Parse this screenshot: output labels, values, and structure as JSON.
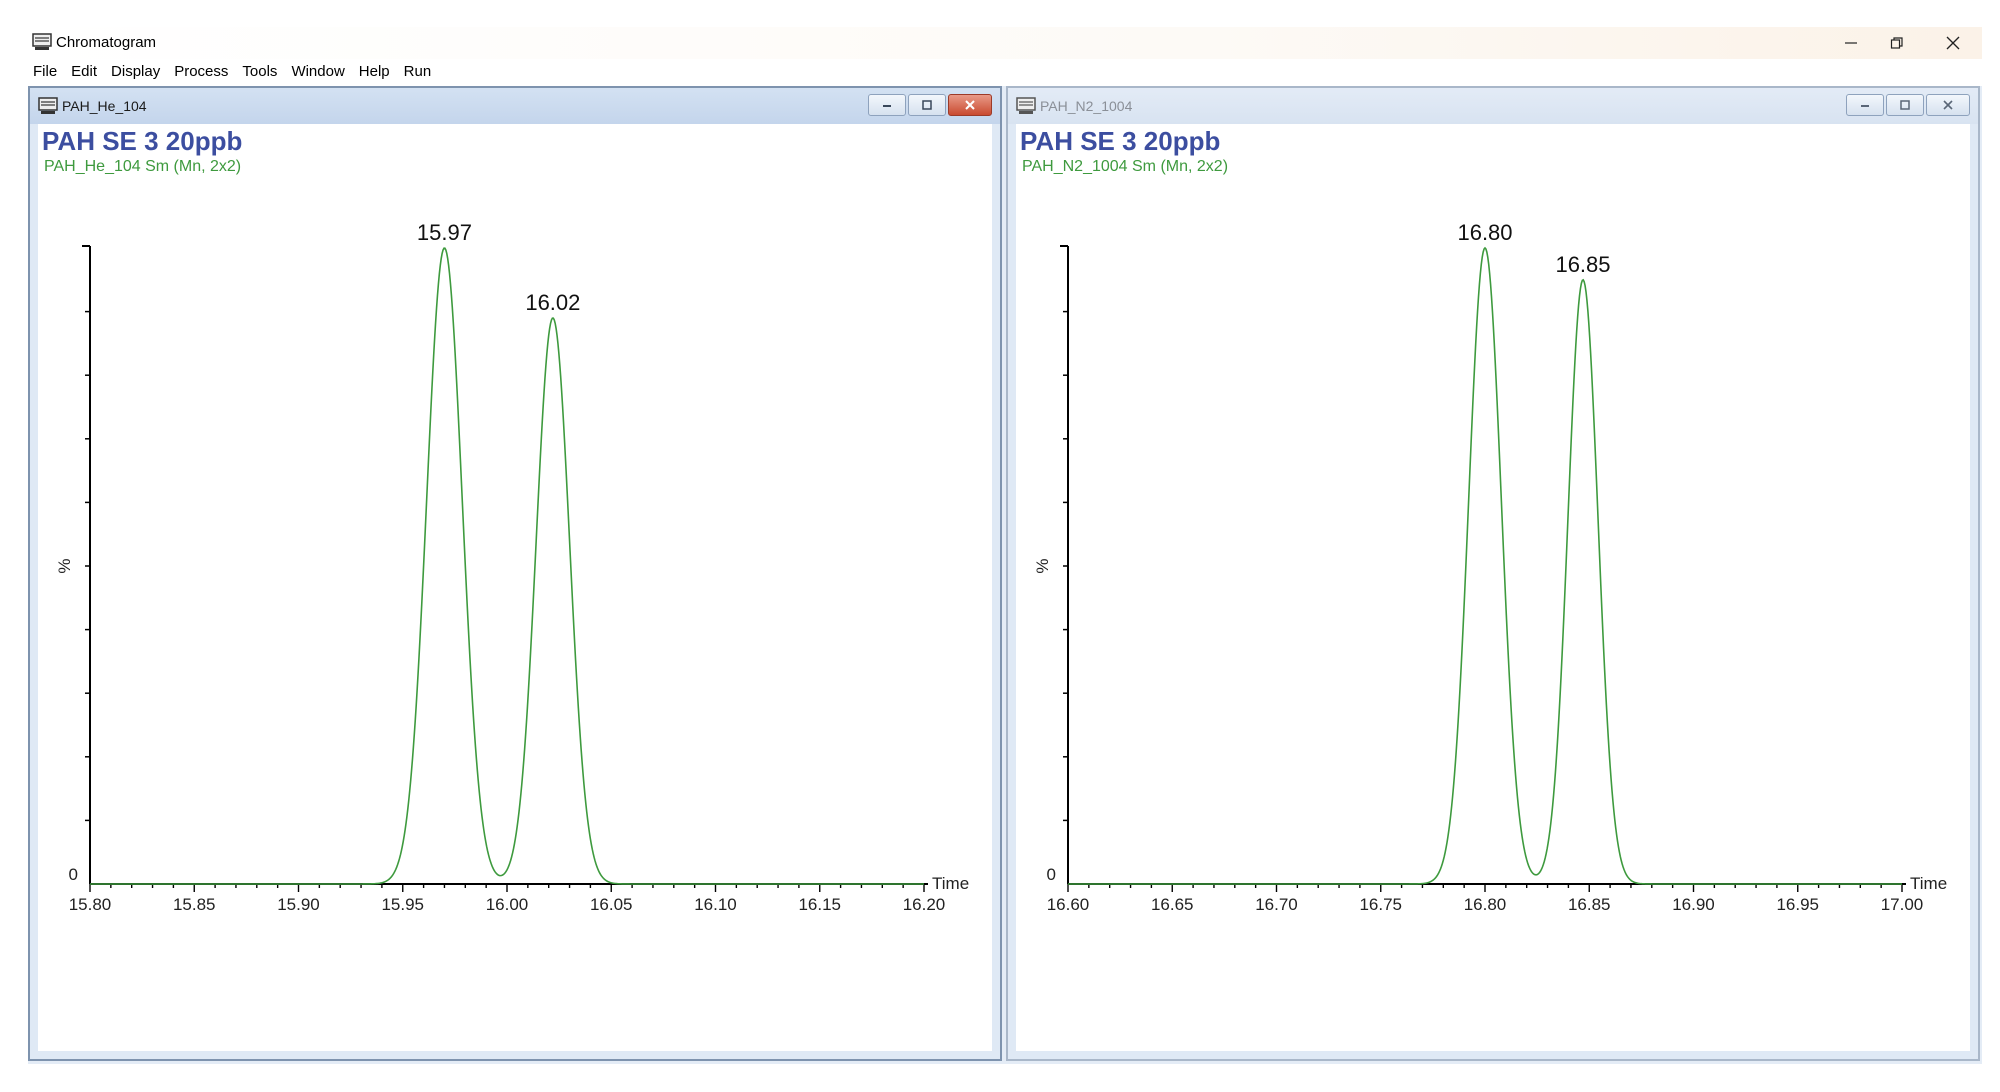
{
  "app": {
    "title": "Chromatogram",
    "menu": [
      "File",
      "Edit",
      "Display",
      "Process",
      "Tools",
      "Window",
      "Help",
      "Run"
    ]
  },
  "windows": [
    {
      "title": "PAH_He_104",
      "plot_title": "PAH SE 3 20ppb",
      "subtitle": "PAH_He_104 Sm (Mn, 2x2)",
      "active": true
    },
    {
      "title": "PAH_N2_1004",
      "plot_title": "PAH SE 3 20ppb",
      "subtitle": "PAH_N2_1004 Sm (Mn, 2x2)",
      "active": false
    }
  ],
  "colors": {
    "trace": "#3e9a3e",
    "title": "#3c4ea0",
    "axis": "#000000"
  },
  "chart_data": [
    {
      "type": "line",
      "xlabel": "Time",
      "ylabel": "%",
      "xlim": [
        15.8,
        16.2
      ],
      "ylim": [
        0,
        100
      ],
      "x_ticks": [
        "15.80",
        "15.85",
        "15.90",
        "15.95",
        "16.00",
        "16.05",
        "16.10",
        "16.15",
        "16.20"
      ],
      "y_tick_label": "0",
      "peaks": [
        {
          "rt": 15.97,
          "height": 100,
          "width": 0.0085,
          "label": "15.97"
        },
        {
          "rt": 16.022,
          "height": 89,
          "width": 0.008,
          "label": "16.02"
        }
      ],
      "series": [
        {
          "points": [
            [
              15.8,
              0
            ],
            [
              15.94,
              0.4
            ],
            [
              15.955,
              40
            ],
            [
              15.97,
              100
            ],
            [
              15.985,
              40
            ],
            [
              15.998,
              3
            ],
            [
              16.008,
              30
            ],
            [
              16.022,
              89
            ],
            [
              16.035,
              30
            ],
            [
              16.05,
              2
            ],
            [
              16.2,
              0
            ]
          ]
        }
      ]
    },
    {
      "type": "line",
      "xlabel": "Time",
      "ylabel": "%",
      "xlim": [
        16.6,
        17.0
      ],
      "ylim": [
        0,
        100
      ],
      "x_ticks": [
        "16.60",
        "16.65",
        "16.70",
        "16.75",
        "16.80",
        "16.85",
        "16.90",
        "16.95",
        "17.00"
      ],
      "y_tick_label": "0",
      "peaks": [
        {
          "rt": 16.8,
          "height": 100,
          "width": 0.0078,
          "label": "16.80"
        },
        {
          "rt": 16.847,
          "height": 95,
          "width": 0.0072,
          "label": "16.85"
        }
      ],
      "series": [
        {
          "points": [
            [
              16.6,
              0
            ],
            [
              16.77,
              0.4
            ],
            [
              16.785,
              40
            ],
            [
              16.8,
              100
            ],
            [
              16.815,
              40
            ],
            [
              16.823,
              6
            ],
            [
              16.835,
              40
            ],
            [
              16.847,
              95
            ],
            [
              16.86,
              35
            ],
            [
              16.875,
              1
            ],
            [
              17.0,
              0
            ]
          ]
        }
      ]
    }
  ]
}
